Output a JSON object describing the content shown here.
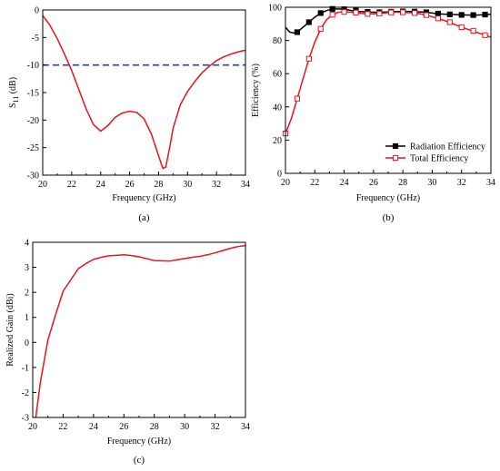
{
  "chart_data": [
    {
      "id": "a",
      "type": "line",
      "caption": "(a)",
      "xlabel": "Frequency (GHz)",
      "ylabel": "S11 (dB)",
      "ylabel_main": "S",
      "ylabel_sub": "11",
      "ylabel_unit": " (dB)",
      "xlim": [
        20,
        34
      ],
      "ylim": [
        -30,
        0
      ],
      "xticks": [
        20,
        22,
        24,
        26,
        28,
        30,
        32,
        34
      ],
      "yticks": [
        0,
        -5,
        -10,
        -15,
        -20,
        -25,
        -30
      ],
      "grid": false,
      "series": [
        {
          "color": "#e8141c",
          "style": "solid",
          "x": [
            20.0,
            20.5,
            21.0,
            21.5,
            22.0,
            22.5,
            23.0,
            23.5,
            24.0,
            24.5,
            25.0,
            25.5,
            26.0,
            26.5,
            27.0,
            27.5,
            28.0,
            28.3,
            28.5,
            28.8,
            29.0,
            29.5,
            30.0,
            30.5,
            31.0,
            31.5,
            32.0,
            32.5,
            33.0,
            33.5,
            34.0
          ],
          "y": [
            -1.0,
            -2.8,
            -5.2,
            -8.0,
            -11.0,
            -14.5,
            -18.0,
            -20.8,
            -22.0,
            -21.0,
            -19.5,
            -18.7,
            -18.4,
            -18.6,
            -19.8,
            -22.5,
            -26.5,
            -28.8,
            -28.5,
            -24.5,
            -21.5,
            -17.2,
            -14.8,
            -13.0,
            -11.4,
            -10.2,
            -9.2,
            -8.5,
            -8.0,
            -7.6,
            -7.3
          ]
        },
        {
          "color": "#1f3fcc",
          "style": "dashed",
          "x": [
            20,
            34
          ],
          "y": [
            -10,
            -10
          ]
        }
      ]
    },
    {
      "id": "b",
      "type": "line",
      "caption": "(b)",
      "xlabel": "Frequency (GHz)",
      "ylabel": "Efficiency (%)",
      "xlim": [
        20,
        34
      ],
      "ylim": [
        0,
        100
      ],
      "xticks": [
        20,
        22,
        24,
        26,
        28,
        30,
        32,
        34
      ],
      "yticks": [
        0,
        20,
        40,
        60,
        80,
        100
      ],
      "grid": false,
      "legend_position": "bottom-right",
      "series": [
        {
          "name": "Radiation Efficiency",
          "color": "#000000",
          "marker": "filled-square",
          "x": [
            20.0,
            20.3,
            20.6,
            20.8,
            21.2,
            21.6,
            22.0,
            22.4,
            22.8,
            23.2,
            23.6,
            24.0,
            24.5,
            25.0,
            25.5,
            26.0,
            26.5,
            27.0,
            27.5,
            28.0,
            28.5,
            29.0,
            29.5,
            30.0,
            30.5,
            31.0,
            31.5,
            32.0,
            32.5,
            33.0,
            33.5,
            34.0
          ],
          "y": [
            88,
            85,
            84.5,
            85,
            88,
            91,
            94,
            96.5,
            98,
            99,
            99,
            98.8,
            98,
            97.5,
            97.2,
            97,
            97,
            97.2,
            97.4,
            97.5,
            97.5,
            97.3,
            97,
            96.5,
            96,
            95.8,
            95.6,
            95.4,
            95.3,
            95.3,
            95.5,
            95.8
          ],
          "markers_x": [
            20.8,
            21.6,
            22.4,
            23.2,
            24.0,
            24.8,
            25.6,
            26.4,
            27.2,
            28.0,
            28.8,
            29.6,
            30.4,
            31.2,
            32.0,
            32.8,
            33.6
          ],
          "markers_y": [
            85,
            91,
            96.5,
            99,
            98.8,
            98,
            97.2,
            97,
            97.3,
            97.5,
            97.4,
            97,
            96.2,
            95.7,
            95.4,
            95.3,
            95.6
          ]
        },
        {
          "name": "Total Efficiency",
          "color": "#e8141c",
          "marker": "open-square",
          "x": [
            20.0,
            20.4,
            20.8,
            21.2,
            21.6,
            22.0,
            22.4,
            22.8,
            23.2,
            23.6,
            24.0,
            24.5,
            25.0,
            25.5,
            26.0,
            26.5,
            27.0,
            27.5,
            28.0,
            28.5,
            29.0,
            29.5,
            30.0,
            30.5,
            31.0,
            31.5,
            32.0,
            32.5,
            33.0,
            33.5,
            34.0
          ],
          "y": [
            24,
            33,
            45,
            57,
            69,
            79,
            87,
            92.5,
            95.5,
            97,
            97.2,
            97,
            96.5,
            96,
            96,
            96.3,
            96.8,
            97,
            97,
            96.7,
            96.3,
            95.5,
            94.3,
            93,
            91.5,
            89.8,
            88,
            86.5,
            85,
            83.5,
            82
          ],
          "markers_x": [
            20.0,
            20.8,
            21.6,
            22.4,
            23.2,
            24.0,
            24.8,
            25.6,
            26.4,
            27.2,
            28.0,
            28.8,
            29.6,
            30.4,
            31.2,
            32.0,
            32.8,
            33.6
          ],
          "markers_y": [
            24,
            45,
            69,
            87,
            95.5,
            97.2,
            96.8,
            96,
            96.2,
            96.9,
            97,
            96.5,
            95.3,
            93.3,
            91,
            88,
            85.8,
            83.2
          ]
        }
      ]
    },
    {
      "id": "c",
      "type": "line",
      "caption": "(c)",
      "xlabel": "Frequency (GHz)",
      "ylabel": "Realized Gain (dBi)",
      "xlim": [
        20,
        34
      ],
      "ylim": [
        -3,
        4
      ],
      "xticks": [
        20,
        22,
        24,
        26,
        28,
        30,
        32,
        34
      ],
      "yticks": [
        4,
        3,
        2,
        1,
        0,
        -1,
        -2,
        -3
      ],
      "grid": false,
      "series": [
        {
          "color": "#e8141c",
          "style": "solid",
          "x": [
            20.2,
            20.5,
            21.0,
            21.5,
            22.0,
            22.5,
            23.0,
            23.5,
            24.0,
            24.5,
            25.0,
            25.5,
            26.0,
            26.5,
            27.0,
            27.5,
            28.0,
            28.5,
            29.0,
            29.5,
            30.0,
            30.5,
            31.0,
            31.5,
            32.0,
            32.5,
            33.0,
            33.5,
            34.0
          ],
          "y": [
            -3.0,
            -1.6,
            0.1,
            1.1,
            2.05,
            2.5,
            2.95,
            3.15,
            3.32,
            3.4,
            3.46,
            3.48,
            3.5,
            3.47,
            3.42,
            3.35,
            3.27,
            3.26,
            3.25,
            3.3,
            3.35,
            3.4,
            3.44,
            3.5,
            3.58,
            3.67,
            3.76,
            3.83,
            3.87
          ]
        }
      ]
    }
  ]
}
